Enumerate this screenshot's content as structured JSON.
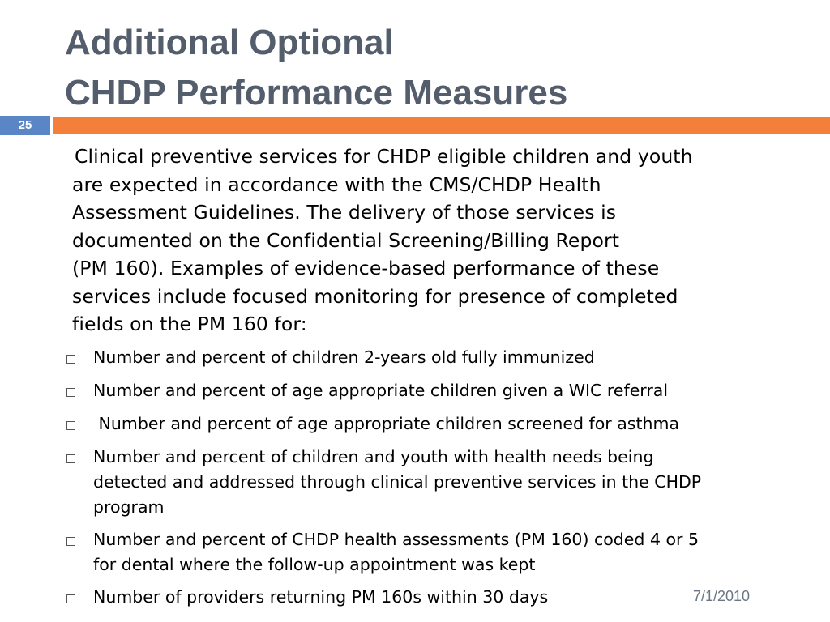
{
  "title": {
    "line1": "Additional Optional",
    "line2": "CHDP Performance Measures"
  },
  "slide_number": "25",
  "body": {
    "lines": [
      "Clinical preventive services for CHDP eligible children and youth",
      "are expected in accordance with the CMS/CHDP Health",
      "Assessment Guidelines.  The delivery of those services is",
      "documented on the Confidential Screening/Billing Report",
      "(PM 160).   Examples of evidence-based performance of these",
      "services include focused monitoring for presence of completed",
      "fields on the PM 160 for:"
    ]
  },
  "bullets": [
    {
      "lines": [
        "Number and percent of children 2-years old fully immunized"
      ]
    },
    {
      "lines": [
        "Number and percent of age appropriate children given a WIC referral"
      ]
    },
    {
      "lines": [
        " Number and percent of age appropriate children screened for asthma"
      ]
    },
    {
      "lines": [
        "Number and percent of children and youth with health needs being",
        "detected and addressed through clinical preventive services in the CHDP",
        "program"
      ]
    },
    {
      "lines": [
        "Number and percent of CHDP health assessments (PM 160) coded 4 or 5",
        "for dental where the follow-up appointment was kept"
      ]
    },
    {
      "lines": [
        "Number of providers returning PM 160s within 30 days"
      ]
    }
  ],
  "footer": {
    "date": "7/1/2010"
  },
  "colors": {
    "title": "#535d6c",
    "slide_number_bg": "#5b86c5",
    "accent_bar": "#f47f3b",
    "date": "#6b7684"
  }
}
